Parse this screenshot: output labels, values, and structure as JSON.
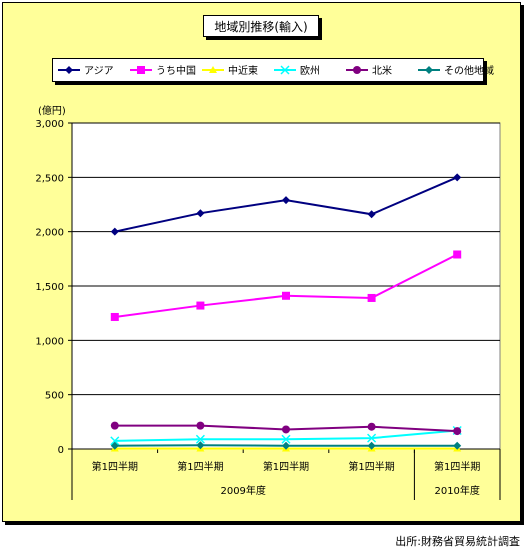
{
  "source_note": "出所:財務省貿易統計調査",
  "chart_data": {
    "type": "line",
    "title": "地域別推移(輸入)",
    "unit_label": "(億円)",
    "categories": [
      "第1四半期",
      "第1四半期",
      "第1四半期",
      "第1四半期",
      "第1四半期"
    ],
    "year_groups": [
      {
        "label": "2009年度",
        "count": 4
      },
      {
        "label": "2010年度",
        "count": 1
      }
    ],
    "ylim": [
      0,
      3000
    ],
    "yticks": [
      0,
      500,
      1000,
      1500,
      2000,
      2500,
      3000
    ],
    "ytick_labels": [
      "0",
      "500",
      "1,000",
      "1,500",
      "2,000",
      "2,500",
      "3,000"
    ],
    "grid": true,
    "legend_position": "top",
    "series": [
      {
        "name": "アジア",
        "color": "#000080",
        "marker": "diamond",
        "values": [
          2000,
          2170,
          2290,
          2160,
          2500
        ]
      },
      {
        "name": "うち中国",
        "color": "#ff00ff",
        "marker": "square",
        "values": [
          1215,
          1320,
          1410,
          1390,
          1790
        ]
      },
      {
        "name": "中近東",
        "color": "#ffff00",
        "marker": "triangle",
        "values": [
          5,
          5,
          5,
          5,
          5
        ]
      },
      {
        "name": "欧州",
        "color": "#00ffff",
        "marker": "x",
        "values": [
          75,
          90,
          90,
          100,
          170
        ]
      },
      {
        "name": "北米",
        "color": "#800080",
        "marker": "circle",
        "values": [
          215,
          215,
          180,
          205,
          165
        ]
      },
      {
        "name": "その他地域",
        "color": "#008080",
        "marker": "diamond",
        "values": [
          30,
          35,
          30,
          30,
          30
        ]
      }
    ]
  }
}
